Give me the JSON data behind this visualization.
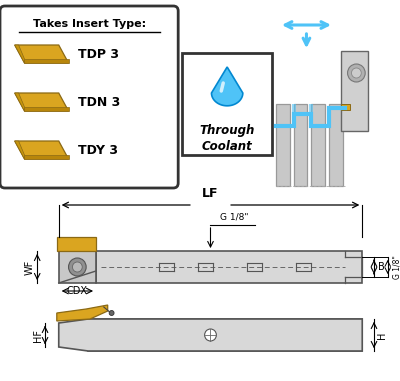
{
  "bg_color": "#ffffff",
  "tool_color": "#d8d8d8",
  "tool_edge_color": "#555555",
  "insert_color": "#DAA520",
  "insert_edge": "#8B6914",
  "dim_color": "#000000",
  "coolant_blue": "#4fc3f7",
  "arrow_color": "#4fc3f7",
  "labels": {
    "HF": "HF",
    "H": "H",
    "CDX": "CDX",
    "WF": "WF",
    "B": "B",
    "G18_bottom": "G 1/8\"",
    "G18_right": "G 1/8\"",
    "LF": "LF",
    "insert_title": "Takes Insert Type:",
    "insert1": "TDP 3",
    "insert2": "TDN 3",
    "insert3": "TDY 3",
    "coolant": "Through\nCoolant"
  }
}
